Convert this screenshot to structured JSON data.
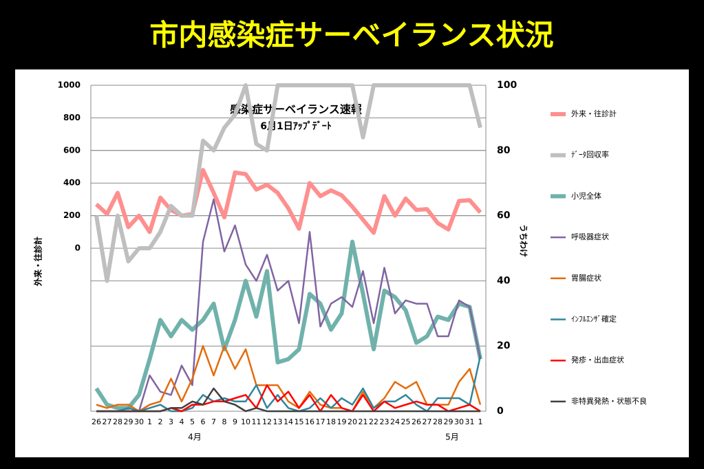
{
  "page_title": "市内感染症サーベイランス状況",
  "chart_data": {
    "type": "line",
    "title": "感染症サーベイランス速報",
    "subtitle": "6月1日ｱｯﾌﾟﾃﾞｰﾄ",
    "ylabel": "外来・往診計",
    "y2label": "うちわけ",
    "x_group_labels": [
      "4月",
      "5月"
    ],
    "categories": [
      "26",
      "27",
      "28",
      "29",
      "30",
      "1",
      "2",
      "3",
      "4",
      "5",
      "6",
      "7",
      "8",
      "9",
      "10",
      "11",
      "12",
      "13",
      "14",
      "15",
      "16",
      "17",
      "18",
      "19",
      "20",
      "21",
      "22",
      "23",
      "24",
      "25",
      "26",
      "27",
      "28",
      "29",
      "30",
      "31",
      "1"
    ],
    "ylim": [
      -1000,
      1000
    ],
    "yticks": [
      0,
      200,
      400,
      600,
      800,
      1000
    ],
    "y2lim": [
      0,
      100
    ],
    "y2ticks": [
      0,
      20,
      40,
      60,
      80,
      100
    ],
    "grid": true,
    "series": [
      {
        "name": "外来・往診計",
        "color": "#ff8f8f",
        "width": 6,
        "axis": "y",
        "values": [
          270,
          210,
          340,
          130,
          200,
          100,
          310,
          235,
          200,
          210,
          480,
          340,
          190,
          465,
          455,
          360,
          390,
          340,
          245,
          120,
          400,
          320,
          355,
          325,
          255,
          175,
          95,
          320,
          200,
          305,
          235,
          240,
          155,
          115,
          290,
          295,
          220
        ]
      },
      {
        "name": "ﾃﾞｰﾀ回収率",
        "color": "#bfbfbf",
        "width": 6,
        "axis": "y2",
        "values": [
          60,
          40,
          60,
          46,
          50,
          50,
          55,
          63,
          60,
          60,
          83,
          80,
          87,
          91,
          100,
          82,
          80,
          100,
          100,
          100,
          100,
          100,
          100,
          100,
          100,
          84,
          100,
          100,
          100,
          100,
          100,
          100,
          100,
          100,
          100,
          100,
          87
        ]
      },
      {
        "name": "小児全体",
        "color": "#70b2ab",
        "width": 6,
        "axis": "y2",
        "values": [
          7,
          2,
          1,
          1,
          5,
          16,
          28,
          23,
          28,
          25,
          28,
          33,
          19,
          28,
          40,
          29,
          43,
          15,
          16,
          19,
          36,
          33,
          25,
          30,
          52,
          36,
          19,
          37,
          35,
          31,
          21,
          23,
          29,
          28,
          33,
          32,
          16
        ]
      },
      {
        "name": "呼吸器症状",
        "color": "#8064a2",
        "width": 2.5,
        "axis": "y2",
        "values": [
          0,
          0,
          0,
          0,
          0,
          11,
          6,
          5,
          14,
          8,
          52,
          65,
          49,
          57,
          45,
          40,
          48,
          37,
          40,
          27,
          55,
          26,
          33,
          35,
          32,
          43,
          27,
          44,
          30,
          34,
          33,
          33,
          23,
          23,
          34,
          32,
          16
        ]
      },
      {
        "name": "胃腸症状",
        "color": "#e46c0a",
        "width": 2.5,
        "axis": "y2",
        "values": [
          2,
          1,
          2,
          2,
          0,
          2,
          3,
          10,
          3,
          10,
          20,
          11,
          20,
          13,
          19,
          8,
          8,
          8,
          3,
          1,
          6,
          2,
          1,
          1,
          0,
          6,
          1,
          4,
          9,
          7,
          9,
          2,
          2,
          2,
          9,
          13,
          2
        ]
      },
      {
        "name": "ｲﾝﾌﾙｴﾝｻﾞ確定",
        "color": "#31859c",
        "width": 2.5,
        "axis": "y2",
        "values": [
          0,
          0,
          0,
          1,
          0,
          1,
          2,
          0,
          0,
          1,
          5,
          3,
          4,
          3,
          3,
          8,
          1,
          5,
          1,
          0,
          1,
          4,
          1,
          4,
          2,
          7,
          1,
          3,
          3,
          5,
          2,
          0,
          4,
          4,
          4,
          2,
          17
        ]
      },
      {
        "name": "発疹・出血症状",
        "color": "#ff0000",
        "width": 2.5,
        "axis": "y2",
        "values": [
          0,
          0,
          0,
          0,
          0,
          0,
          0,
          1,
          0,
          2,
          2,
          3,
          3,
          4,
          5,
          1,
          8,
          3,
          6,
          1,
          5,
          0,
          5,
          1,
          0,
          5,
          0,
          3,
          1,
          2,
          3,
          2,
          2,
          0,
          1,
          2,
          0
        ]
      },
      {
        "name": "非特異発熱・状態不良",
        "color": "#404040",
        "width": 2.5,
        "axis": "y2",
        "values": [
          0,
          0,
          0,
          0,
          0,
          0,
          0,
          1,
          1,
          3,
          2,
          7,
          3,
          2,
          0,
          1,
          0,
          0,
          0,
          0,
          0,
          0,
          0,
          0,
          0,
          0,
          0,
          0,
          0,
          0,
          0,
          0,
          0,
          0,
          0,
          0,
          0
        ]
      }
    ]
  }
}
